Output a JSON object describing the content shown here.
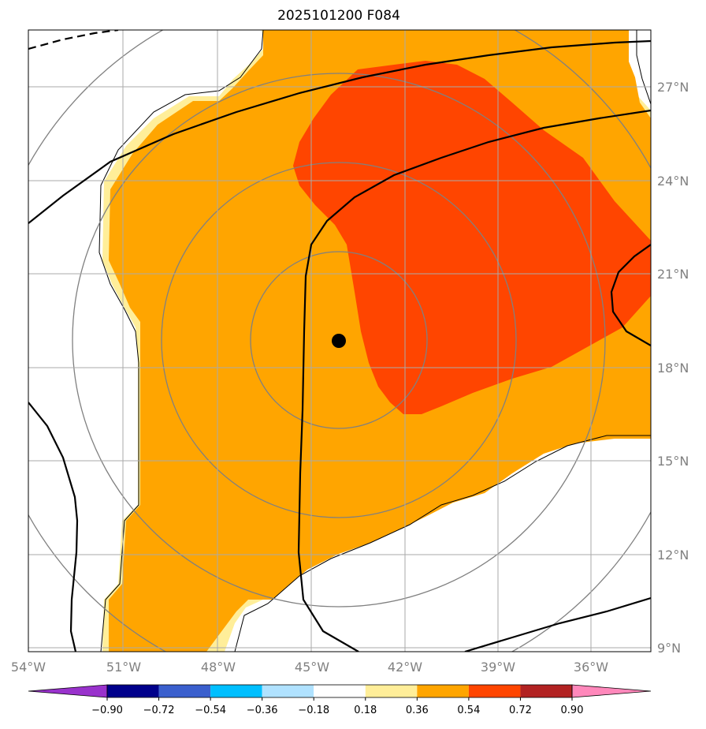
{
  "title": "2025101200 F084",
  "lon_labels": [
    "54°W",
    "51°W",
    "48°W",
    "45°W",
    "42°W",
    "39°W",
    "36°W"
  ],
  "lat_labels": [
    "27°N",
    "24°N",
    "21°N",
    "18°N",
    "15°N",
    "12°N",
    "9°N"
  ],
  "colorbar": {
    "levels": [
      "−0.90",
      "−0.72",
      "−0.54",
      "−0.36",
      "−0.18",
      "0.18",
      "0.36",
      "0.54",
      "0.72",
      "0.90"
    ],
    "colors": [
      "#9932cc",
      "#00008b",
      "#3a5fcd",
      "#00bfff",
      "#b0e2ff",
      "#ffffff",
      "#ffee99",
      "#ffa500",
      "#ff4500",
      "#b22222",
      "#ff88bb"
    ]
  },
  "fill_colors": {
    "light": "#ffee99",
    "orange": "#ffa500",
    "red": "#ff4500"
  },
  "storm_center": {
    "lon": -44.0,
    "lat": 18.8
  }
}
